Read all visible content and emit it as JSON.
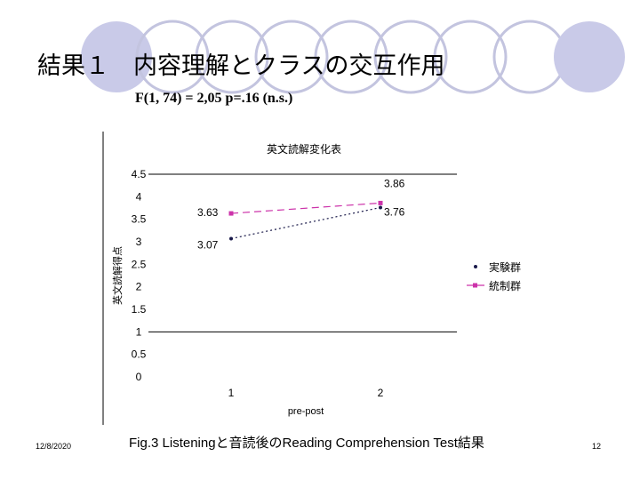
{
  "slide": {
    "title": "結果１　内容理解とクラスの交互作用",
    "stats": "F(1, 74) = 2,05  p=.16 (n.s.)",
    "caption": "Fig.3  Listeningと音読後のReading Comprehension Test結果",
    "date": "12/8/2020",
    "page_number": "12"
  },
  "colors": {
    "circle_fill": "#c9cae8",
    "circle_outline": "#c3c4df",
    "experimental": "#1a1a4a",
    "control": "#cc33aa"
  },
  "chart_data": {
    "type": "line",
    "title": "英文読解変化表",
    "xlabel": "pre-post",
    "ylabel": "英文読解得点",
    "categories": [
      "1",
      "2"
    ],
    "ylim": [
      0,
      4.5
    ],
    "yticks": [
      "0",
      "0.5",
      "1",
      "1.5",
      "2",
      "2.5",
      "3",
      "3.5",
      "4",
      "4.5"
    ],
    "grid": "horizontal",
    "legend_position": "right",
    "series": [
      {
        "name": "実験群",
        "values": [
          3.07,
          3.76
        ],
        "labels": [
          "3.07",
          "3.76"
        ],
        "marker": "dot",
        "line": "dotted"
      },
      {
        "name": "統制群",
        "values": [
          3.63,
          3.86
        ],
        "labels": [
          "3.63",
          "3.86"
        ],
        "marker": "square",
        "line": "dashed"
      }
    ]
  }
}
